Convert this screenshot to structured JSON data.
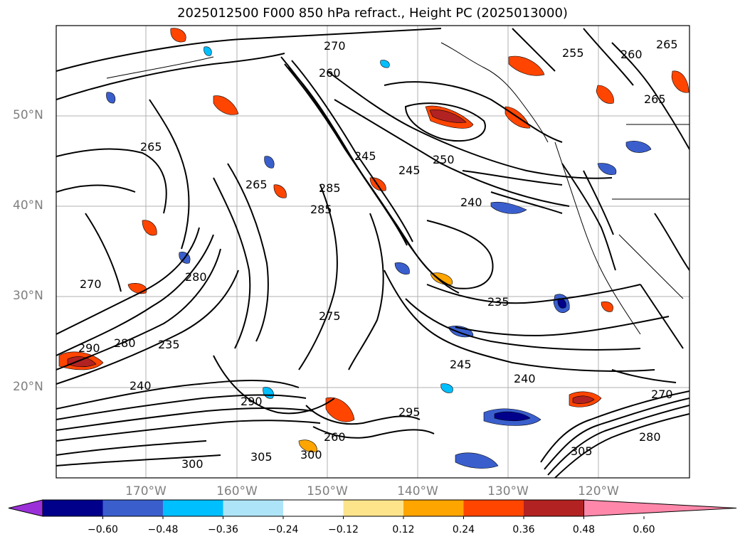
{
  "title": "2025012500 F000 850 hPa refract., Height PC (2025013000)",
  "lat_labels": [
    "50°N",
    "40°N",
    "30°N",
    "20°N"
  ],
  "lon_labels": [
    "170°W",
    "160°W",
    "150°W",
    "140°W",
    "130°W",
    "120°W"
  ],
  "colorbar": {
    "colors": [
      "#9b30d9",
      "#00008b",
      "#3a5fcd",
      "#00bfff",
      "#aee4f8",
      "#ffffff",
      "#fde48a",
      "#ffa500",
      "#ff4500",
      "#b22222",
      "#ff88aa"
    ],
    "ticks": [
      "−0.60",
      "−0.48",
      "−0.36",
      "−0.24",
      "−0.12",
      "0.12",
      "0.24",
      "0.36",
      "0.48",
      "0.60"
    ]
  },
  "contour_labels": [
    "270",
    "265",
    "260",
    "255",
    "265",
    "260",
    "265",
    "250",
    "245",
    "245",
    "240",
    "265",
    "285",
    "285",
    "235",
    "240",
    "270",
    "290",
    "280",
    "275",
    "235",
    "245",
    "240",
    "290",
    "280",
    "300",
    "305",
    "260",
    "295",
    "300",
    "305",
    "280",
    "270"
  ]
}
